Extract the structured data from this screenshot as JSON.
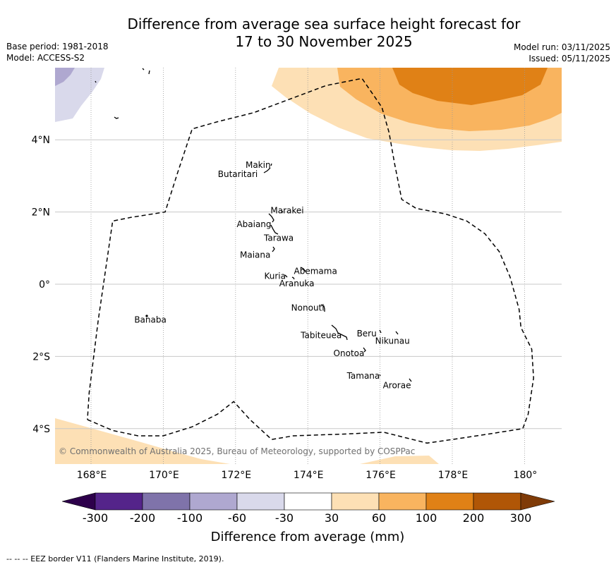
{
  "header": {
    "title_line1": "Difference from average sea surface height forecast for",
    "title_line2": "17 to 30 November 2025",
    "base_period": "Base period: 1981-2018",
    "model": "Model: ACCESS-S2",
    "model_run": "Model run: 03/11/2025",
    "issued": "Issued: 05/11/2025"
  },
  "map": {
    "lon_range": [
      167,
      181
    ],
    "lat_range": [
      -5.0,
      6.0
    ],
    "lon_ticks": [
      {
        "value": 168,
        "label": "168°E"
      },
      {
        "value": 170,
        "label": "170°E"
      },
      {
        "value": 172,
        "label": "172°E"
      },
      {
        "value": 174,
        "label": "174°E"
      },
      {
        "value": 176,
        "label": "176°E"
      },
      {
        "value": 178,
        "label": "178°E"
      },
      {
        "value": 180,
        "label": "180°"
      }
    ],
    "lat_ticks": [
      {
        "value": 4,
        "label": "4°N"
      },
      {
        "value": 2,
        "label": "2°N"
      },
      {
        "value": 0,
        "label": "0°"
      },
      {
        "value": -2,
        "label": "2°S"
      },
      {
        "value": -4,
        "label": "4°S"
      }
    ],
    "copyright": "© Commonwealth of Australia 2025, Bureau of Meteorology, supported by COSPPac",
    "islands": [
      {
        "name": "Makin",
        "lon": 172.98,
        "lat": 3.3
      },
      {
        "name": "Butaritari",
        "lon": 172.8,
        "lat": 3.07
      },
      {
        "name": "Marakei",
        "lon": 173.3,
        "lat": 2.0
      },
      {
        "name": "Abaiang",
        "lon": 172.95,
        "lat": 1.8
      },
      {
        "name": "Tarawa",
        "lon": 173.0,
        "lat": 1.4
      },
      {
        "name": "Maiana",
        "lon": 173.0,
        "lat": 0.95
      },
      {
        "name": "Abemama",
        "lon": 173.85,
        "lat": 0.4
      },
      {
        "name": "Kuria",
        "lon": 173.4,
        "lat": 0.22
      },
      {
        "name": "Aranuka",
        "lon": 173.6,
        "lat": 0.18
      },
      {
        "name": "Nonouti",
        "lon": 174.4,
        "lat": -0.65
      },
      {
        "name": "Banaba",
        "lon": 169.53,
        "lat": -0.87
      },
      {
        "name": "Tabiteuea",
        "lon": 174.8,
        "lat": -1.3
      },
      {
        "name": "Beru",
        "lon": 175.98,
        "lat": -1.33
      },
      {
        "name": "Nikunau",
        "lon": 176.45,
        "lat": -1.38
      },
      {
        "name": "Onotoa",
        "lon": 175.55,
        "lat": -1.8
      },
      {
        "name": "Tamana",
        "lon": 175.98,
        "lat": -2.5
      },
      {
        "name": "Arorae",
        "lon": 176.82,
        "lat": -2.65
      }
    ],
    "eez_border": [
      [
        167.9,
        -3.75
      ],
      [
        168.6,
        -4.05
      ],
      [
        169.3,
        -4.2
      ],
      [
        170.0,
        -4.2
      ],
      [
        170.8,
        -3.95
      ],
      [
        171.5,
        -3.6
      ],
      [
        171.95,
        -3.25
      ],
      [
        172.4,
        -3.75
      ],
      [
        173.0,
        -4.3
      ],
      [
        173.6,
        -4.2
      ],
      [
        175.0,
        -4.15
      ],
      [
        176.1,
        -4.1
      ],
      [
        176.7,
        -4.25
      ],
      [
        177.3,
        -4.4
      ],
      [
        178.0,
        -4.3
      ],
      [
        179.0,
        -4.15
      ],
      [
        179.95,
        -4.0
      ],
      [
        180.1,
        -3.6
      ],
      [
        180.25,
        -2.6
      ],
      [
        180.2,
        -1.8
      ],
      [
        179.9,
        -1.2
      ],
      [
        179.85,
        -0.7
      ],
      [
        179.6,
        0.2
      ],
      [
        179.3,
        0.9
      ],
      [
        178.9,
        1.4
      ],
      [
        178.4,
        1.75
      ],
      [
        177.8,
        1.95
      ],
      [
        177.0,
        2.1
      ],
      [
        176.6,
        2.35
      ],
      [
        176.4,
        3.35
      ],
      [
        176.25,
        4.2
      ],
      [
        176.05,
        4.9
      ],
      [
        175.5,
        5.7
      ],
      [
        174.5,
        5.5
      ],
      [
        172.5,
        4.75
      ],
      [
        171.5,
        4.5
      ],
      [
        170.8,
        4.3
      ],
      [
        170.4,
        3.1
      ],
      [
        170.05,
        2.0
      ],
      [
        169.1,
        1.85
      ],
      [
        168.6,
        1.75
      ],
      [
        168.2,
        -1.0
      ],
      [
        167.95,
        -3.0
      ],
      [
        167.9,
        -3.75
      ]
    ]
  },
  "colorbar": {
    "title": "Difference from average (mm)",
    "boundaries": [
      "-300",
      "-200",
      "-100",
      "-60",
      "-30",
      "30",
      "60",
      "100",
      "200",
      "300"
    ],
    "colors": [
      "#54248a",
      "#7f73aa",
      "#afa8d0",
      "#d9d9eb",
      "#ffffff",
      "#fde0b5",
      "#f9b45f",
      "#e08116",
      "#b05606"
    ],
    "extend_low_color": "#2d004b",
    "extend_high_color": "#7f3b08"
  },
  "anomaly_regions": [
    {
      "level": "-100 to -60 mm",
      "color": "#afa8d0",
      "location": "far north-west corner"
    },
    {
      "level": "-60 to -30 mm",
      "color": "#d9d9eb",
      "location": "north-west corner"
    },
    {
      "level": "30 to 60 mm",
      "color": "#fde0b5",
      "location": "north-east arc; south-west corner; south-central edge"
    },
    {
      "level": "60 to 100 mm",
      "color": "#f9b45f",
      "location": "north-east"
    },
    {
      "level": "100 to 200 mm",
      "color": "#e08116",
      "location": "north-east core"
    }
  ],
  "footnote": "--  --  -- EEZ border V11 (Flanders Marine Institute, 2019)."
}
